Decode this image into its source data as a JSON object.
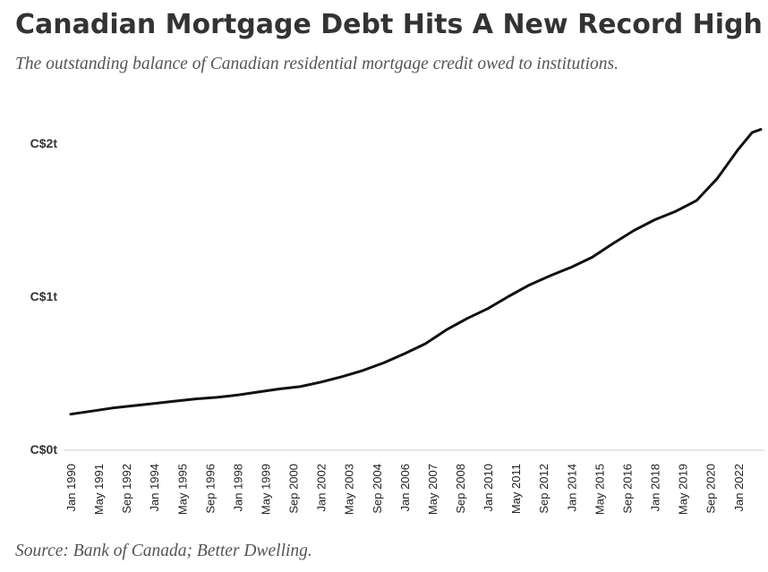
{
  "header": {
    "title": "Canadian Mortgage Debt Hits A New Record High",
    "subtitle": "The outstanding balance of Canadian residential mortgage credit owed to institutions."
  },
  "footer": {
    "source": "Source: Bank of Canada; Better Dwelling."
  },
  "chart_data": {
    "type": "line",
    "line_color": "#111111",
    "grid": false,
    "y_unit": "trillion CAD",
    "ylim": [
      0,
      2.0
    ],
    "y_ticks": [
      {
        "value": 0,
        "label": "C$0t"
      },
      {
        "value": 1,
        "label": "C$1t"
      },
      {
        "value": 2,
        "label": "C$2t"
      }
    ],
    "x_ticks": [
      {
        "date": "1990-01",
        "label": "Jan 1990"
      },
      {
        "date": "1991-05",
        "label": "May 1991"
      },
      {
        "date": "1992-09",
        "label": "Sep 1992"
      },
      {
        "date": "1994-01",
        "label": "Jan 1994"
      },
      {
        "date": "1995-05",
        "label": "May 1995"
      },
      {
        "date": "1996-09",
        "label": "Sep 1996"
      },
      {
        "date": "1998-01",
        "label": "Jan 1998"
      },
      {
        "date": "1999-05",
        "label": "May 1999"
      },
      {
        "date": "2000-09",
        "label": "Sep 2000"
      },
      {
        "date": "2002-01",
        "label": "Jan 2002"
      },
      {
        "date": "2003-05",
        "label": "May 2003"
      },
      {
        "date": "2004-09",
        "label": "Sep 2004"
      },
      {
        "date": "2006-01",
        "label": "Jan 2006"
      },
      {
        "date": "2007-05",
        "label": "May 2007"
      },
      {
        "date": "2008-09",
        "label": "Sep 2008"
      },
      {
        "date": "2010-01",
        "label": "Jan 2010"
      },
      {
        "date": "2011-05",
        "label": "May 2011"
      },
      {
        "date": "2012-09",
        "label": "Sep 2012"
      },
      {
        "date": "2014-01",
        "label": "Jan 2014"
      },
      {
        "date": "2015-05",
        "label": "May 2015"
      },
      {
        "date": "2016-09",
        "label": "Sep 2016"
      },
      {
        "date": "2018-01",
        "label": "Jan 2018"
      },
      {
        "date": "2019-05",
        "label": "May 2019"
      },
      {
        "date": "2020-09",
        "label": "Sep 2020"
      },
      {
        "date": "2022-01",
        "label": "Jan 2022"
      }
    ],
    "series": [
      {
        "points": [
          {
            "x": "1990-01",
            "y": 0.23
          },
          {
            "x": "1991-01",
            "y": 0.25
          },
          {
            "x": "1992-01",
            "y": 0.27
          },
          {
            "x": "1993-01",
            "y": 0.285
          },
          {
            "x": "1994-01",
            "y": 0.3
          },
          {
            "x": "1995-01",
            "y": 0.315
          },
          {
            "x": "1996-01",
            "y": 0.33
          },
          {
            "x": "1997-01",
            "y": 0.34
          },
          {
            "x": "1998-01",
            "y": 0.355
          },
          {
            "x": "1999-01",
            "y": 0.375
          },
          {
            "x": "2000-01",
            "y": 0.395
          },
          {
            "x": "2001-01",
            "y": 0.41
          },
          {
            "x": "2002-01",
            "y": 0.44
          },
          {
            "x": "2003-01",
            "y": 0.475
          },
          {
            "x": "2004-01",
            "y": 0.515
          },
          {
            "x": "2005-01",
            "y": 0.565
          },
          {
            "x": "2006-01",
            "y": 0.625
          },
          {
            "x": "2007-01",
            "y": 0.69
          },
          {
            "x": "2008-01",
            "y": 0.78
          },
          {
            "x": "2009-01",
            "y": 0.855
          },
          {
            "x": "2010-01",
            "y": 0.92
          },
          {
            "x": "2011-01",
            "y": 1.0
          },
          {
            "x": "2012-01",
            "y": 1.075
          },
          {
            "x": "2013-01",
            "y": 1.135
          },
          {
            "x": "2014-01",
            "y": 1.19
          },
          {
            "x": "2015-01",
            "y": 1.255
          },
          {
            "x": "2016-01",
            "y": 1.345
          },
          {
            "x": "2017-01",
            "y": 1.43
          },
          {
            "x": "2018-01",
            "y": 1.5
          },
          {
            "x": "2019-01",
            "y": 1.555
          },
          {
            "x": "2020-01",
            "y": 1.625
          },
          {
            "x": "2021-01",
            "y": 1.77
          },
          {
            "x": "2022-01",
            "y": 1.96
          },
          {
            "x": "2022-09",
            "y": 2.07
          },
          {
            "x": "2023-02",
            "y": 2.09
          }
        ]
      }
    ]
  }
}
